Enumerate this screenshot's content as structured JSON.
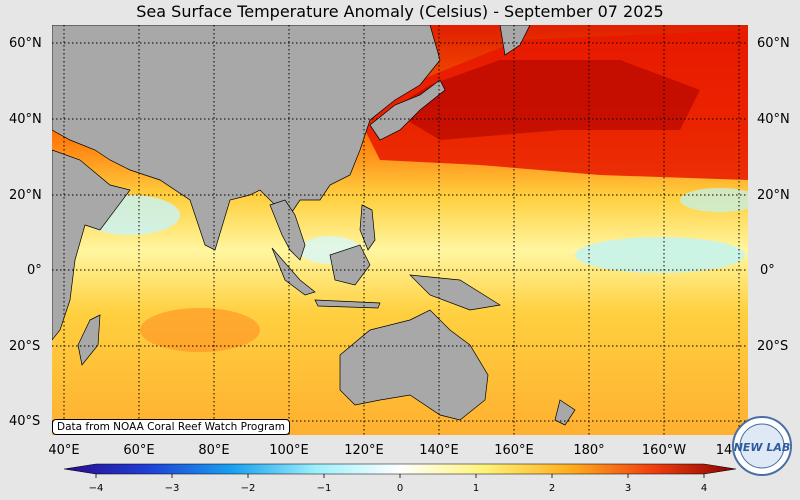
{
  "title": "Sea Surface Temperature Anomaly (Celsius) - September 07 2025",
  "lat_labels_left": [
    "60°N",
    "40°N",
    "20°N",
    "0°",
    "20°S",
    "40°S"
  ],
  "lat_labels_right": [
    "60°N",
    "40°N",
    "20°N",
    "0°",
    "20°S"
  ],
  "lon_labels": [
    "40°E",
    "60°E",
    "80°E",
    "100°E",
    "120°E",
    "140°E",
    "160°E",
    "180°",
    "160°W",
    "14"
  ],
  "credit": "Data from NOAA Coral Reef Watch Program",
  "colorbar": {
    "min": -4,
    "max": 4,
    "ticks": [
      "−4",
      "−3",
      "−2",
      "−1",
      "0",
      "1",
      "2",
      "3",
      "4"
    ],
    "colors": [
      "#2a0a8c",
      "#1f3fd6",
      "#1aa0ef",
      "#9df0fb",
      "#ffffff",
      "#fff37a",
      "#ffb020",
      "#f04010",
      "#8a0000"
    ]
  },
  "logo_text": "NEW LAB",
  "colors": {
    "land": "#a8a8a8",
    "background": "#e6e6e6",
    "grid": "#000000"
  }
}
